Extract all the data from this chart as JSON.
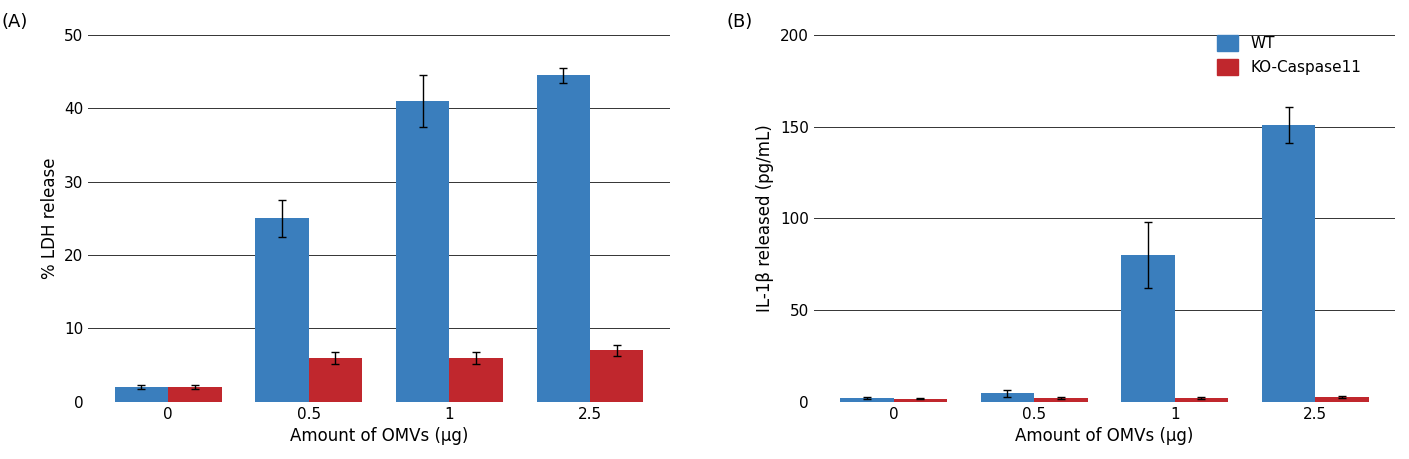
{
  "panel_A": {
    "label": "(A)",
    "categories": [
      "0",
      "0.5",
      "1",
      "2.5"
    ],
    "wt_values": [
      2.0,
      25.0,
      41.0,
      44.5
    ],
    "wt_errors": [
      0.3,
      2.5,
      3.5,
      1.0
    ],
    "ko_values": [
      2.0,
      6.0,
      6.0,
      7.0
    ],
    "ko_errors": [
      0.3,
      0.8,
      0.8,
      0.8
    ],
    "ylabel": "% LDH release",
    "xlabel": "Amount of OMVs (μg)",
    "ylim": [
      0,
      50
    ],
    "yticks": [
      0,
      10,
      20,
      30,
      40,
      50
    ]
  },
  "panel_B": {
    "label": "(B)",
    "categories": [
      "0",
      "0.5",
      "1",
      "2.5"
    ],
    "wt_values": [
      2.0,
      4.5,
      80.0,
      151.0
    ],
    "wt_errors": [
      0.5,
      2.0,
      18.0,
      10.0
    ],
    "ko_values": [
      1.5,
      2.0,
      2.0,
      2.5
    ],
    "ko_errors": [
      0.3,
      0.3,
      0.3,
      0.5
    ],
    "ylabel": "IL-1β released (pg/mL)",
    "xlabel": "Amount of OMVs (μg)",
    "ylim": [
      0,
      200
    ],
    "yticks": [
      0,
      50,
      100,
      150,
      200
    ]
  },
  "wt_color": "#3A7EBD",
  "ko_color": "#C0272D",
  "bar_width": 0.38,
  "legend_labels": [
    "WT",
    "KO-Caspase11"
  ],
  "background_color": "#FFFFFF",
  "grid_color": "#333333",
  "label_fontsize": 12,
  "tick_fontsize": 11,
  "panel_label_fontsize": 13
}
